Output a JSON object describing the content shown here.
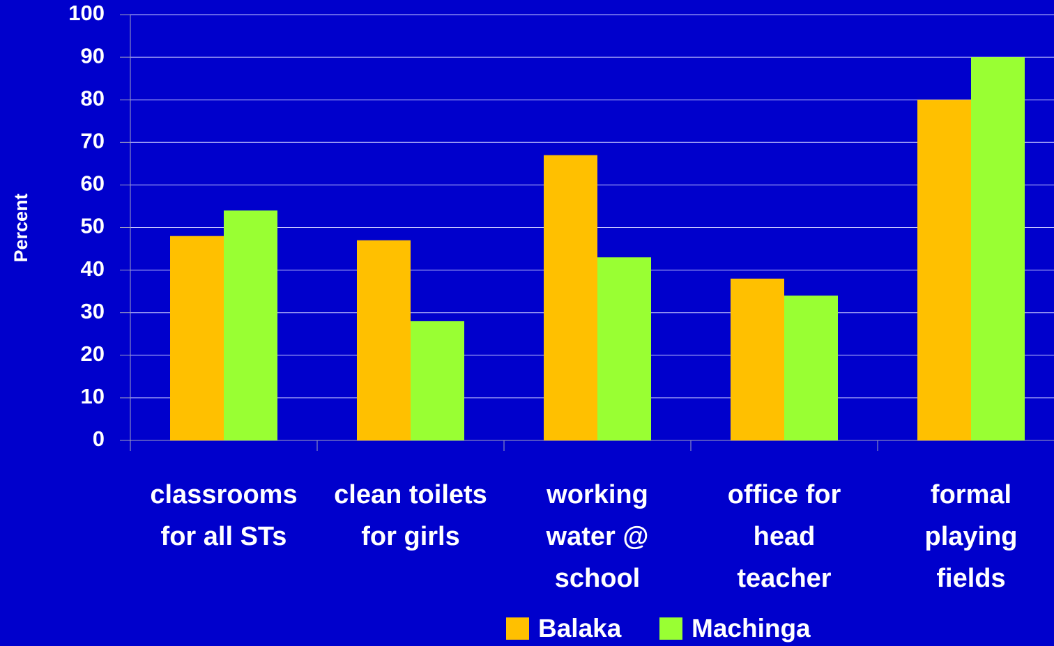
{
  "chart_data": {
    "type": "bar",
    "y_label": "Percent",
    "categories": [
      "classrooms\nfor all STs",
      "clean toilets\nfor girls",
      "working\nwater @\nschool",
      "office for\nhead\nteacher",
      "formal\nplaying\nfields"
    ],
    "series": [
      {
        "name": "Balaka",
        "color": "#ffc000",
        "values": [
          48,
          47,
          67,
          38,
          80
        ]
      },
      {
        "name": "Machinga",
        "color": "#99ff33",
        "values": [
          54,
          28,
          43,
          34,
          90
        ]
      }
    ],
    "ylim": [
      0,
      100
    ],
    "yticks": [
      0,
      10,
      20,
      30,
      40,
      50,
      60,
      70,
      80,
      90,
      100
    ],
    "grid": true,
    "legend": "bottom"
  }
}
